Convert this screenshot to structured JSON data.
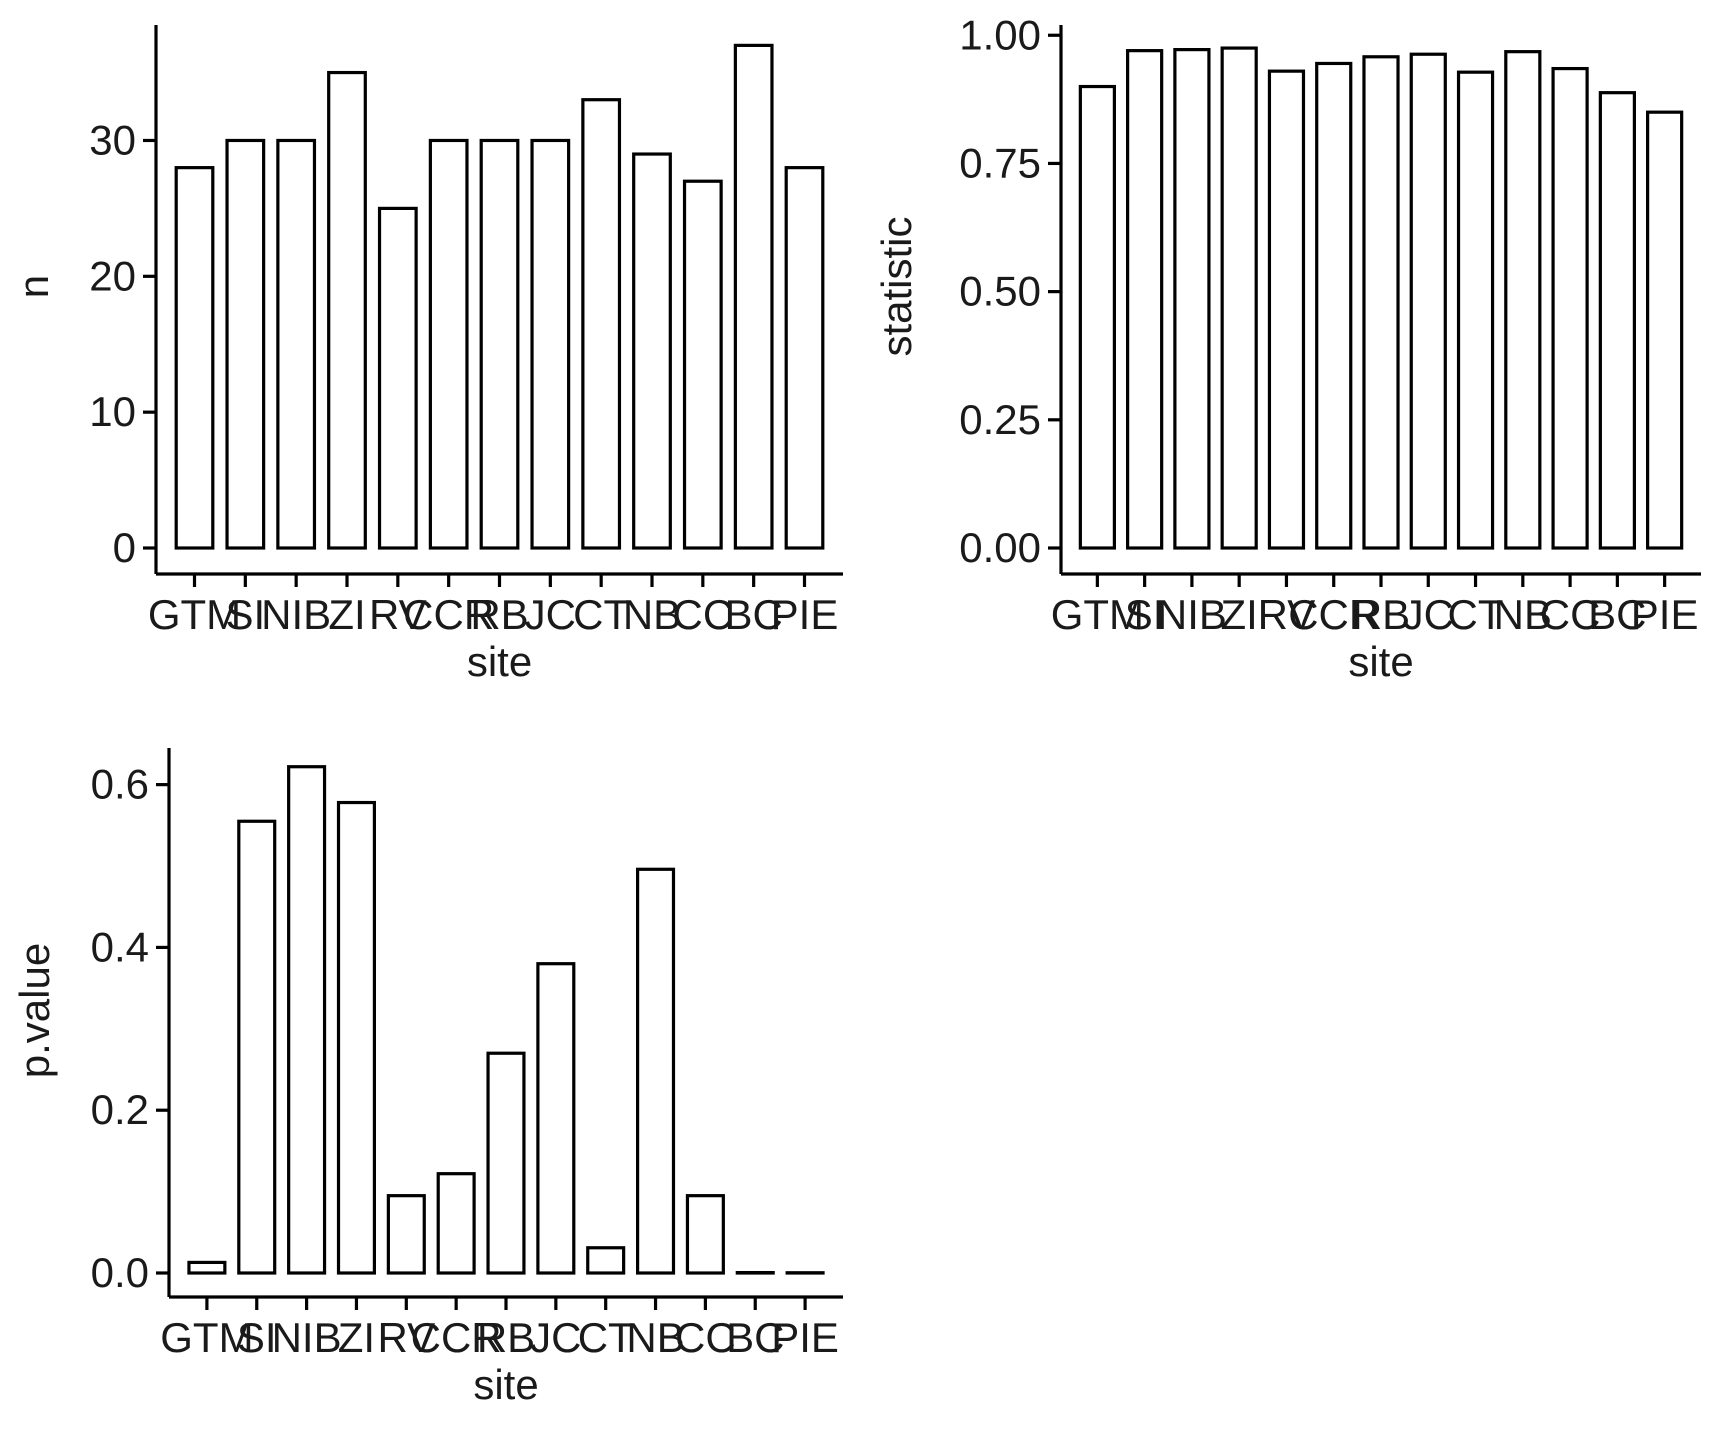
{
  "colors": {
    "bar_fill": "#ffffff",
    "bar_stroke": "#000000",
    "axis": "#000000",
    "text": "#1a1a1a"
  },
  "chart_data": [
    {
      "type": "bar",
      "categories": [
        "GTM",
        "SI",
        "NIB",
        "ZI",
        "RV",
        "CCR",
        "RB",
        "JC",
        "CT",
        "NB",
        "CC",
        "BC",
        "PIE"
      ],
      "values": [
        28,
        30,
        30,
        35,
        25,
        30,
        30,
        30,
        33,
        29,
        27,
        37,
        28
      ],
      "xlabel": "site",
      "ylabel": "n",
      "ylim": [
        0,
        38.5
      ],
      "yticks": [
        0,
        10,
        20,
        30
      ],
      "ytick_labels": [
        "0",
        "10",
        "20",
        "30"
      ],
      "grid": false
    },
    {
      "type": "bar",
      "categories": [
        "GTM",
        "SI",
        "NIB",
        "ZI",
        "RV",
        "CCR",
        "RB",
        "JC",
        "CT",
        "NB",
        "CC",
        "BC",
        "PIE"
      ],
      "values": [
        0.9,
        0.97,
        0.972,
        0.975,
        0.93,
        0.945,
        0.958,
        0.963,
        0.928,
        0.968,
        0.935,
        0.888,
        0.85
      ],
      "xlabel": "site",
      "ylabel": "statistic",
      "ylim": [
        0,
        1.02
      ],
      "yticks": [
        0,
        0.25,
        0.5,
        0.75,
        1.0
      ],
      "ytick_labels": [
        "0.00",
        "0.25",
        "0.50",
        "0.75",
        "1.00"
      ],
      "grid": false
    },
    {
      "type": "bar",
      "categories": [
        "GTM",
        "SI",
        "NIB",
        "ZI",
        "RV",
        "CCR",
        "RB",
        "JC",
        "CT",
        "NB",
        "CC",
        "BC",
        "PIE"
      ],
      "values": [
        0.013,
        0.555,
        0.622,
        0.578,
        0.095,
        0.122,
        0.27,
        0.38,
        0.031,
        0.496,
        0.095,
        0.0005,
        0.0003
      ],
      "xlabel": "site",
      "ylabel": "p.value",
      "ylim": [
        0,
        0.645
      ],
      "yticks": [
        0,
        0.2,
        0.4,
        0.6
      ],
      "ytick_labels": [
        "0.0",
        "0.2",
        "0.4",
        "0.6"
      ],
      "grid": false
    }
  ]
}
